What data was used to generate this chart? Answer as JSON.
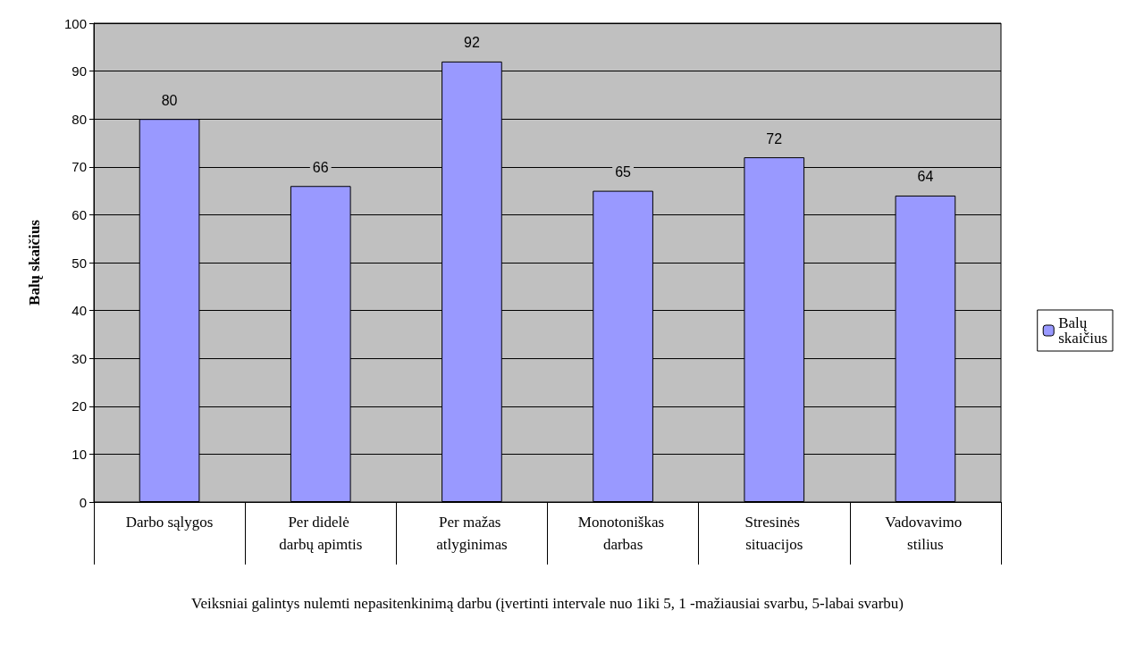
{
  "chart_data": {
    "type": "bar",
    "ylabel": "Balų skaičius",
    "xlabel": "Veiksniai galintys nulemti nepasitenkinimą darbu (įvertinti intervale nuo 1iki 5, 1 -mažiausiai svarbu, 5-labai svarbu)",
    "categories": [
      "Darbo sąlygos",
      "Per didelė darbų apimtis",
      "Per mažas atlyginimas",
      "Monotoniškas darbas",
      "Stresinės situacijos",
      "Vadovavimo stilius"
    ],
    "series": [
      {
        "name": "Balų skaičius",
        "color": "#9999ff",
        "values": [
          80,
          66,
          92,
          65,
          72,
          64
        ]
      }
    ],
    "ylim": [
      0,
      100
    ],
    "yticks": [
      0,
      10,
      20,
      30,
      40,
      50,
      60,
      70,
      80,
      90,
      100
    ],
    "grid": "y",
    "legend": "right",
    "data_labels": true
  }
}
